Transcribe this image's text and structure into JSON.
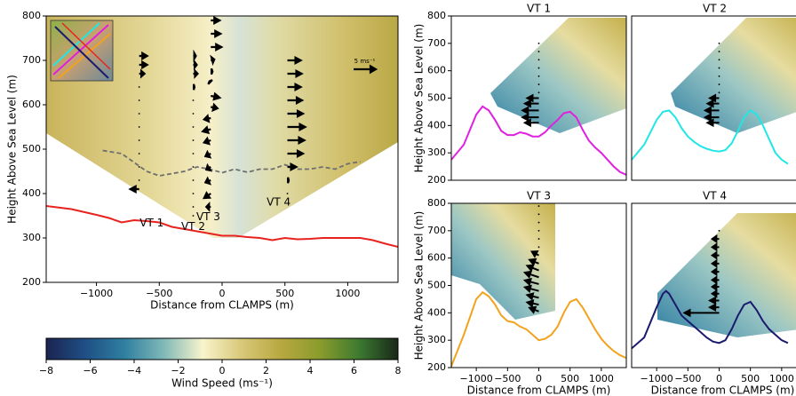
{
  "chart_data": [
    {
      "type": "line",
      "xlabel": "Distance from CLAMPS (m)",
      "ylabel": "Height Above Sea Level (m)",
      "xlim": [
        -1400,
        1400
      ],
      "xticks": [
        {
          "value": -1000,
          "label": "−1000"
        },
        {
          "value": -500,
          "label": "−500"
        },
        0,
        500,
        1000
      ],
      "ylim": [
        200,
        800
      ],
      "yticks": [
        200,
        300,
        400,
        500,
        600,
        700,
        800
      ],
      "series": [
        {
          "color": "#e8231e",
          "dash": false,
          "x": [
            -1400,
            -1200,
            -1000,
            -900,
            -800,
            -700,
            -600,
            -500,
            -400,
            -300,
            -200,
            -100,
            0,
            100,
            200,
            300,
            400,
            500,
            600,
            700,
            800,
            900,
            1000,
            1100,
            1200,
            1300,
            1400
          ],
          "values": [
            372,
            365,
            352,
            345,
            335,
            340,
            338,
            335,
            325,
            320,
            315,
            310,
            305,
            305,
            302,
            300,
            295,
            300,
            297,
            298,
            300,
            300,
            300,
            300,
            295,
            287,
            280
          ]
        },
        {
          "color": "#6e6e6e",
          "dash": true,
          "x": [
            -950,
            -800,
            -700,
            -600,
            -500,
            -400,
            -300,
            -200,
            -100,
            0,
            100,
            200,
            300,
            400,
            500,
            600,
            700,
            800,
            900,
            1000,
            1100
          ],
          "values": [
            497,
            490,
            470,
            450,
            440,
            445,
            450,
            460,
            455,
            447,
            455,
            448,
            455,
            455,
            465,
            455,
            455,
            460,
            455,
            467,
            472
          ]
        }
      ],
      "scale_arrow": {
        "label": "5 ms⁻¹",
        "value": 5
      },
      "profiles": [
        {
          "label": "VT 1",
          "x": -660,
          "heights": [
            710,
            690,
            670,
            640,
            610,
            580,
            550,
            520,
            490,
            460,
            430,
            410
          ],
          "u": [
            1.8,
            1.8,
            1.2,
            0,
            0,
            0,
            0,
            0,
            0,
            0,
            0,
            -2
          ]
        },
        {
          "label": "VT 2",
          "x": -230,
          "heights": [
            710,
            690,
            670,
            640,
            610,
            580,
            550,
            520,
            490,
            460,
            430,
            400,
            370,
            350
          ],
          "u": [
            0.6,
            0.8,
            1,
            0.3,
            0,
            0,
            0,
            0,
            0,
            0,
            0,
            0,
            0,
            0
          ]
        },
        {
          "label": "VT 3",
          "x": -90,
          "heights": [
            790,
            760,
            730,
            700,
            675,
            650,
            620,
            595,
            570,
            545,
            520,
            490,
            460,
            430,
            400,
            370
          ],
          "u": [
            2,
            2.2,
            2.4,
            0.8,
            0.4,
            -0.3,
            2,
            1.5,
            -1.5,
            -1.8,
            -1.5,
            -1.2,
            -1,
            -1.2,
            -1.5,
            -1
          ],
          "w": [
            0,
            0,
            0,
            0.2,
            0,
            0.3,
            -0.4,
            -0.3,
            -0.3,
            -0.5,
            -0.5,
            -0.6,
            -0.6,
            -0.5,
            -1,
            0
          ]
        },
        {
          "label": "VT 4",
          "x": 520,
          "heights": [
            700,
            670,
            640,
            610,
            580,
            550,
            520,
            490,
            460,
            430,
            400
          ],
          "u": [
            3,
            3.2,
            3,
            3.3,
            3.5,
            4,
            3.8,
            3.5,
            2,
            0.3,
            0
          ]
        }
      ]
    },
    {
      "type": "colorbar",
      "xlabel": "Wind Speed (ms⁻¹)",
      "xlim": [
        -8,
        8
      ],
      "xticks": [
        {
          "value": -8,
          "label": "−8"
        },
        {
          "value": -6,
          "label": "−6"
        },
        {
          "value": -4,
          "label": "−4"
        },
        {
          "value": -2,
          "label": "−2"
        },
        0,
        2,
        4,
        6,
        8
      ],
      "colormap": [
        "#1b2450",
        "#1f4f86",
        "#2f7fa0",
        "#7fb8b8",
        "#f8f4cc",
        "#d8c878",
        "#b8a840",
        "#8a9c2c",
        "#3d7a30",
        "#182818"
      ]
    },
    {
      "type": "line",
      "title": "VT 1",
      "ylabel": "Height Above Sea Level (m)",
      "xlim": [
        -1400,
        1400
      ],
      "ylim": [
        200,
        800
      ],
      "yticks": [
        200,
        300,
        400,
        500,
        600,
        700,
        800
      ],
      "series": [
        {
          "color": "#e020e0",
          "dash": false,
          "x": [
            -1400,
            -1200,
            -1000,
            -900,
            -800,
            -700,
            -600,
            -500,
            -400,
            -300,
            -200,
            -100,
            0,
            100,
            200,
            300,
            400,
            500,
            600,
            700,
            800,
            900,
            1000,
            1100,
            1200,
            1300,
            1400
          ],
          "values": [
            275,
            330,
            440,
            470,
            455,
            420,
            380,
            365,
            365,
            375,
            370,
            360,
            360,
            375,
            400,
            420,
            445,
            450,
            430,
            385,
            345,
            320,
            300,
            275,
            250,
            230,
            220
          ]
        }
      ],
      "profiles": [
        {
          "x": 0,
          "heights": [
            700,
            670,
            640,
            610,
            580,
            550,
            520,
            500,
            480,
            455,
            430,
            410
          ],
          "u": [
            0,
            0,
            0,
            0,
            0,
            0,
            0,
            -2.5,
            -3,
            -3.5,
            -3.5,
            -3
          ]
        }
      ]
    },
    {
      "type": "line",
      "title": "VT 2",
      "xlim": [
        -1400,
        1400
      ],
      "ylim": [
        200,
        800
      ],
      "series": [
        {
          "color": "#22e6e6",
          "dash": false,
          "x": [
            -1400,
            -1200,
            -1000,
            -900,
            -800,
            -700,
            -600,
            -500,
            -400,
            -300,
            -200,
            -100,
            0,
            100,
            200,
            300,
            400,
            500,
            600,
            700,
            800,
            900,
            1000,
            1100
          ],
          "values": [
            275,
            330,
            420,
            450,
            455,
            430,
            390,
            360,
            340,
            325,
            315,
            308,
            305,
            310,
            335,
            380,
            430,
            455,
            440,
            400,
            350,
            300,
            275,
            260
          ]
        }
      ],
      "profiles": [
        {
          "x": 0,
          "heights": [
            700,
            670,
            640,
            610,
            580,
            550,
            520,
            500,
            480,
            455,
            430,
            410
          ],
          "u": [
            0,
            0,
            0,
            0,
            0,
            0,
            0,
            -2,
            -2.5,
            -3,
            -3,
            -2.5
          ]
        }
      ]
    },
    {
      "type": "line",
      "title": "VT 3",
      "xlabel": "Distance from CLAMPS (m)",
      "ylabel": "Height Above Sea Level (m)",
      "xlim": [
        -1400,
        1400
      ],
      "xticks": [
        {
          "value": -1000,
          "label": "−1000"
        },
        {
          "value": -500,
          "label": "−500"
        },
        0,
        500,
        1000
      ],
      "ylim": [
        200,
        800
      ],
      "yticks": [
        200,
        300,
        400,
        500,
        600,
        700,
        800
      ],
      "series": [
        {
          "color": "#f2a31e",
          "dash": false,
          "x": [
            -1400,
            -1200,
            -1000,
            -900,
            -800,
            -700,
            -600,
            -500,
            -400,
            -300,
            -200,
            -100,
            0,
            100,
            200,
            300,
            400,
            500,
            600,
            700,
            800,
            900,
            1000,
            1100,
            1200,
            1300,
            1400
          ],
          "values": [
            205,
            320,
            450,
            475,
            460,
            430,
            390,
            370,
            365,
            350,
            340,
            320,
            300,
            305,
            320,
            350,
            400,
            440,
            450,
            420,
            380,
            340,
            305,
            280,
            260,
            245,
            235
          ]
        }
      ],
      "profiles": [
        {
          "x": 0,
          "heights": [
            790,
            760,
            730,
            700,
            670,
            640,
            610,
            580,
            555,
            530,
            505,
            480,
            455,
            430,
            405
          ],
          "u": [
            0,
            0,
            0,
            0,
            0,
            0,
            -1.5,
            -2,
            -2.5,
            -3,
            -3,
            -3,
            -2.5,
            -2.5,
            -2
          ],
          "w": [
            0,
            0,
            0,
            0,
            0,
            0,
            0.8,
            0.8,
            1,
            1,
            0.8,
            0.8,
            0.6,
            0.5,
            0.8
          ]
        }
      ]
    },
    {
      "type": "line",
      "title": "VT 4",
      "xlabel": "Distance from CLAMPS (m)",
      "xlim": [
        -1400,
        1400
      ],
      "xticks": [
        {
          "value": -1000,
          "label": "−1000"
        },
        {
          "value": -500,
          "label": "−500"
        },
        0,
        500,
        1000
      ],
      "ylim": [
        200,
        800
      ],
      "series": [
        {
          "color": "#1a1a6e",
          "dash": false,
          "x": [
            -1400,
            -1200,
            -1000,
            -900,
            -850,
            -800,
            -700,
            -600,
            -500,
            -400,
            -300,
            -200,
            -100,
            0,
            100,
            200,
            300,
            400,
            500,
            600,
            700,
            800,
            900,
            1000,
            1100
          ],
          "values": [
            270,
            310,
            420,
            470,
            480,
            470,
            430,
            390,
            370,
            350,
            330,
            310,
            295,
            290,
            300,
            340,
            390,
            430,
            440,
            410,
            370,
            340,
            320,
            300,
            290
          ]
        }
      ],
      "profiles": [
        {
          "x": 0,
          "heights": [
            700,
            670,
            640,
            610,
            580,
            550,
            520,
            495,
            470,
            445,
            420,
            400
          ],
          "u": [
            0,
            -1.5,
            -1.5,
            -1.5,
            -1.5,
            -1.5,
            -1.5,
            -1.5,
            -1.5,
            -2,
            -2,
            -7.5
          ]
        }
      ]
    }
  ]
}
